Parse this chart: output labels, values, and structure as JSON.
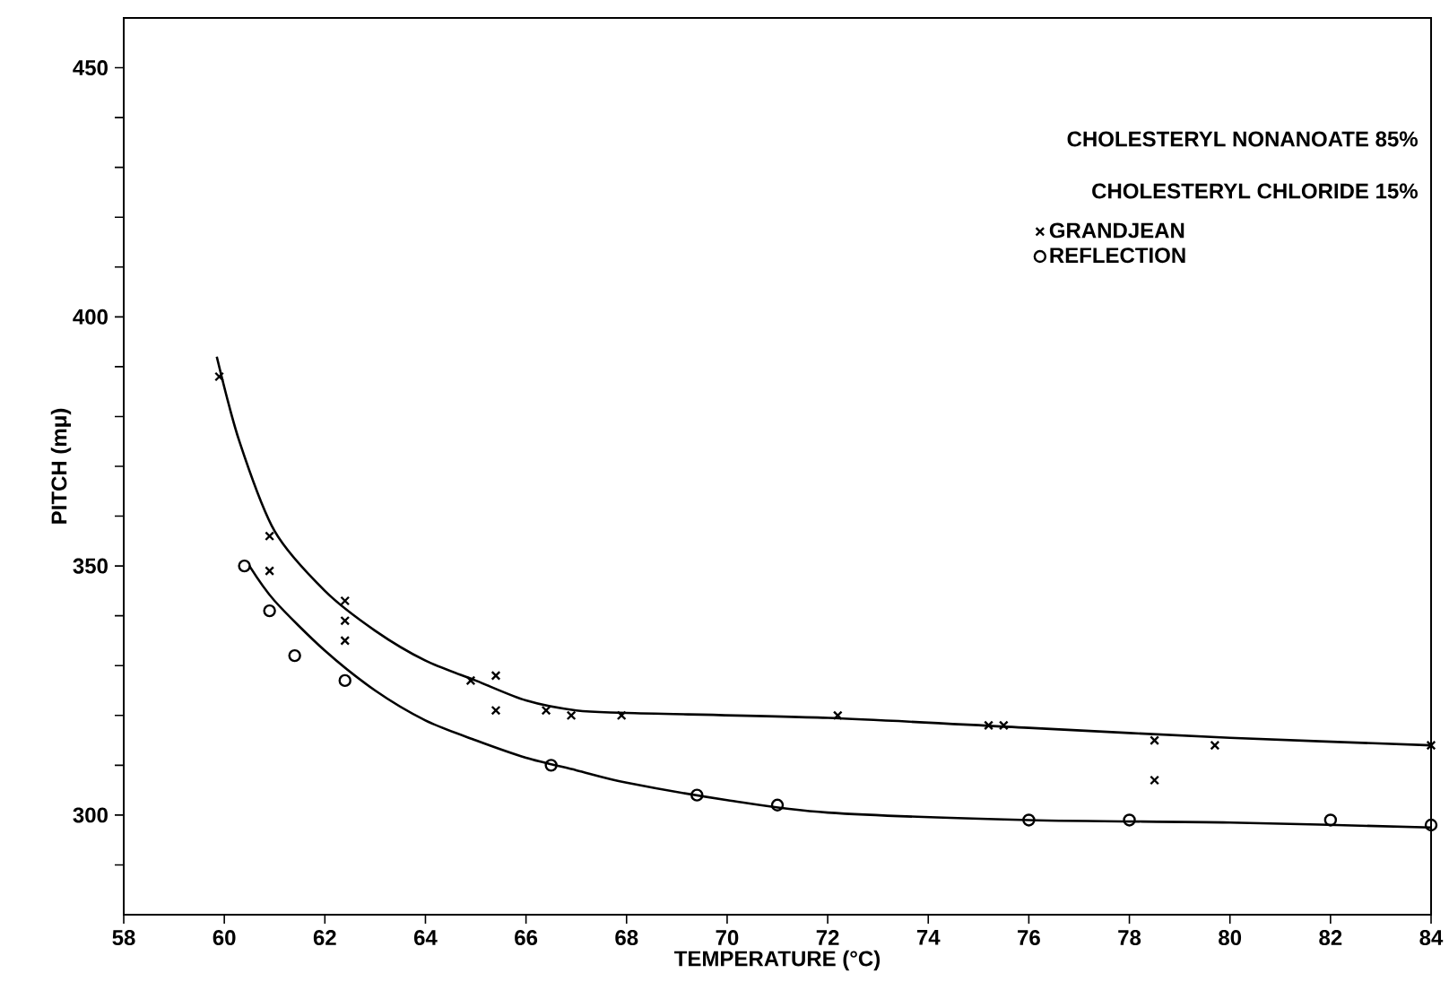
{
  "chart_data": {
    "type": "scatter",
    "xlabel": "TEMPERATURE (°C)",
    "ylabel": "PITCH (mμ)",
    "annotations": [
      "CHOLESTERYL NONANOATE 85%",
      "CHOLESTERYL CHLORIDE 15%"
    ],
    "xlim": [
      58,
      84
    ],
    "xticks": [
      58,
      60,
      62,
      64,
      66,
      68,
      70,
      72,
      74,
      76,
      78,
      80,
      82,
      84
    ],
    "ylim": [
      280,
      460
    ],
    "yticks": [
      {
        "value": 290,
        "label": null
      },
      300,
      {
        "value": 310,
        "label": null
      },
      {
        "value": 320,
        "label": null
      },
      {
        "value": 330,
        "label": null
      },
      {
        "value": 340,
        "label": null
      },
      350,
      {
        "value": 360,
        "label": null
      },
      {
        "value": 370,
        "label": null
      },
      {
        "value": 380,
        "label": null
      },
      {
        "value": 390,
        "label": null
      },
      400,
      {
        "value": 410,
        "label": null
      },
      {
        "value": 420,
        "label": null
      },
      {
        "value": 430,
        "label": null
      },
      {
        "value": 440,
        "label": null
      },
      450
    ],
    "grid": false,
    "legend": "top right",
    "series": [
      {
        "name": "GRANDJEAN",
        "marker": "cross",
        "color": "#000000",
        "x": [
          59.9,
          60.9,
          60.9,
          62.4,
          62.4,
          62.4,
          64.9,
          65.4,
          65.4,
          66.4,
          66.9,
          67.9,
          72.2,
          75.2,
          75.5,
          78.5,
          78.5,
          79.7,
          84
        ],
        "values": [
          388,
          356,
          349,
          343,
          339,
          335,
          327,
          328,
          321,
          321,
          320,
          320,
          320,
          318,
          318,
          315,
          307,
          314,
          314
        ]
      },
      {
        "name": "REFLECTION",
        "marker": "circle",
        "color": "#000000",
        "x": [
          60.4,
          60.9,
          61.4,
          62.4,
          66.5,
          69.4,
          71.0,
          76.0,
          78.0,
          82.0,
          84
        ],
        "values": [
          350,
          341,
          332,
          327,
          310,
          304,
          302,
          299,
          299,
          299,
          298
        ]
      },
      {
        "type": "line",
        "marker": "none",
        "line_style": "solid",
        "color": "#000000",
        "x": [
          59.85,
          60.3,
          61,
          62,
          63,
          64,
          65,
          66,
          67,
          68,
          72,
          76,
          80,
          84
        ],
        "values": [
          392,
          375,
          357,
          345,
          337,
          331,
          327,
          323,
          321,
          320.5,
          319.5,
          317.5,
          315.5,
          314
        ]
      },
      {
        "type": "line",
        "marker": "none",
        "line_style": "solid",
        "color": "#000000",
        "x": [
          60.5,
          61,
          62,
          63,
          64,
          65,
          66,
          67,
          68,
          70,
          72,
          76,
          80,
          84
        ],
        "values": [
          350,
          343,
          333,
          325,
          319,
          315,
          311.5,
          309,
          306.5,
          303,
          300.5,
          299,
          298.5,
          297.5
        ]
      }
    ]
  }
}
